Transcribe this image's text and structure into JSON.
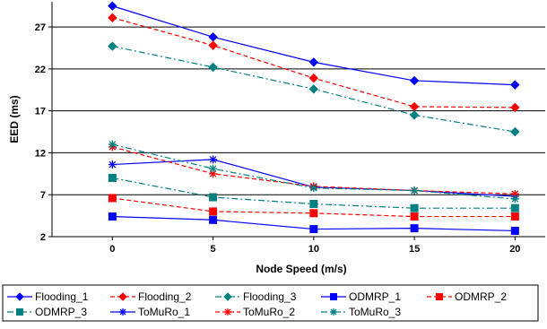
{
  "chart_data": {
    "type": "line",
    "title": "",
    "xlabel": "Node Speed (m/s)",
    "ylabel": "EED (ms)",
    "x": [
      0,
      5,
      10,
      15,
      20
    ],
    "xlim": [
      -3,
      21.5
    ],
    "ylim": [
      2,
      30
    ],
    "yticks": [
      2,
      7,
      12,
      17,
      22,
      27
    ],
    "grid": true,
    "legend_position": "bottom",
    "series": [
      {
        "name": "Flooding_1",
        "values": [
          29.5,
          25.8,
          22.8,
          20.6,
          20.1
        ],
        "color": "#0000ff",
        "dash": "solid",
        "marker": "diamond"
      },
      {
        "name": "Flooding_2",
        "values": [
          28.1,
          24.8,
          20.9,
          17.5,
          17.4
        ],
        "color": "#ff0000",
        "dash": "dashed",
        "marker": "diamond"
      },
      {
        "name": "Flooding_3",
        "values": [
          24.7,
          22.2,
          19.6,
          16.5,
          14.5
        ],
        "color": "#008080",
        "dash": "dashdot",
        "marker": "diamond"
      },
      {
        "name": "ODMRP_1",
        "values": [
          4.4,
          4.0,
          2.9,
          3.0,
          2.7
        ],
        "color": "#0000ff",
        "dash": "solid",
        "marker": "square"
      },
      {
        "name": "ODMRP_2",
        "values": [
          6.6,
          5.0,
          4.8,
          4.4,
          4.4
        ],
        "color": "#ff0000",
        "dash": "dashed",
        "marker": "square"
      },
      {
        "name": "ODMRP_3",
        "values": [
          9.0,
          6.7,
          5.9,
          5.4,
          5.4
        ],
        "color": "#008080",
        "dash": "dashdot",
        "marker": "square"
      },
      {
        "name": "ToMuRo_1",
        "values": [
          10.6,
          11.2,
          7.9,
          7.5,
          6.8
        ],
        "color": "#0000ff",
        "dash": "solid",
        "marker": "star"
      },
      {
        "name": "ToMuRo_2",
        "values": [
          12.7,
          9.5,
          8.0,
          7.5,
          7.1
        ],
        "color": "#ff0000",
        "dash": "dashed",
        "marker": "star"
      },
      {
        "name": "ToMuRo_3",
        "values": [
          13.0,
          10.1,
          7.8,
          7.5,
          6.5
        ],
        "color": "#008080",
        "dash": "dashdot",
        "marker": "star"
      }
    ]
  }
}
